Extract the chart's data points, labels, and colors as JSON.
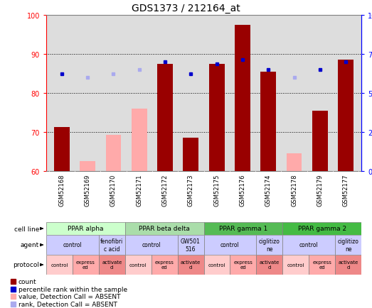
{
  "title": "GDS1373 / 212164_at",
  "samples": [
    "GSM52168",
    "GSM52169",
    "GSM52170",
    "GSM52171",
    "GSM52172",
    "GSM52173",
    "GSM52175",
    "GSM52176",
    "GSM52174",
    "GSM52178",
    "GSM52179",
    "GSM52177"
  ],
  "bar_values": [
    71.2,
    null,
    null,
    null,
    87.5,
    68.5,
    87.5,
    97.5,
    85.5,
    null,
    75.5,
    88.5
  ],
  "bar_absent_values": [
    null,
    62.5,
    69.2,
    76.0,
    null,
    null,
    null,
    null,
    null,
    64.5,
    null,
    null
  ],
  "dot_values": [
    85,
    84,
    85,
    86,
    88,
    85,
    87.5,
    88.5,
    86,
    84,
    86,
    88
  ],
  "dot_absent": [
    false,
    true,
    true,
    true,
    false,
    false,
    false,
    false,
    false,
    true,
    false,
    false
  ],
  "ylim_left": [
    60,
    100
  ],
  "ylim_right": [
    0,
    100
  ],
  "yticks_left": [
    60,
    70,
    80,
    90,
    100
  ],
  "yticks_right": [
    0,
    25,
    50,
    75,
    100
  ],
  "ytick_labels_right": [
    "0",
    "25",
    "50",
    "75",
    "100%"
  ],
  "bar_color": "#990000",
  "bar_absent_color": "#ffaaaa",
  "dot_color": "#0000cc",
  "dot_absent_color": "#aaaaee",
  "cell_line_colors": {
    "PPAR alpha": "#ccffcc",
    "PPAR beta delta": "#aaddaa",
    "PPAR gamma 1": "#55bb55",
    "PPAR gamma 2": "#44bb44"
  },
  "cell_lines": [
    {
      "label": "PPAR alpha",
      "start": 0,
      "end": 3
    },
    {
      "label": "PPAR beta delta",
      "start": 3,
      "end": 6
    },
    {
      "label": "PPAR gamma 1",
      "start": 6,
      "end": 9
    },
    {
      "label": "PPAR gamma 2",
      "start": 9,
      "end": 12
    }
  ],
  "agents": [
    {
      "label": "control",
      "start": 0,
      "end": 2
    },
    {
      "label": "fenofibri\nc acid",
      "start": 2,
      "end": 3
    },
    {
      "label": "control",
      "start": 3,
      "end": 5
    },
    {
      "label": "GW501\n516",
      "start": 5,
      "end": 6
    },
    {
      "label": "control",
      "start": 6,
      "end": 8
    },
    {
      "label": "ciglitizo\nne",
      "start": 8,
      "end": 9
    },
    {
      "label": "control",
      "start": 9,
      "end": 11
    },
    {
      "label": "ciglitizo\nne",
      "start": 11,
      "end": 12
    }
  ],
  "protocols": [
    {
      "label": "control",
      "start": 0,
      "end": 1,
      "color": "#ffcccc"
    },
    {
      "label": "express\ned",
      "start": 1,
      "end": 2,
      "color": "#ffaaaa"
    },
    {
      "label": "activate\nd",
      "start": 2,
      "end": 3,
      "color": "#ee8888"
    },
    {
      "label": "control",
      "start": 3,
      "end": 4,
      "color": "#ffcccc"
    },
    {
      "label": "express\ned",
      "start": 4,
      "end": 5,
      "color": "#ffaaaa"
    },
    {
      "label": "activate\nd",
      "start": 5,
      "end": 6,
      "color": "#ee8888"
    },
    {
      "label": "control",
      "start": 6,
      "end": 7,
      "color": "#ffcccc"
    },
    {
      "label": "express\ned",
      "start": 7,
      "end": 8,
      "color": "#ffaaaa"
    },
    {
      "label": "activate\nd",
      "start": 8,
      "end": 9,
      "color": "#ee8888"
    },
    {
      "label": "control",
      "start": 9,
      "end": 10,
      "color": "#ffcccc"
    },
    {
      "label": "express\ned",
      "start": 10,
      "end": 11,
      "color": "#ffaaaa"
    },
    {
      "label": "activate\nd",
      "start": 11,
      "end": 12,
      "color": "#ee8888"
    }
  ],
  "legend_items": [
    {
      "label": "count",
      "color": "#990000"
    },
    {
      "label": "percentile rank within the sample",
      "color": "#0000cc"
    },
    {
      "label": "value, Detection Call = ABSENT",
      "color": "#ffaaaa"
    },
    {
      "label": "rank, Detection Call = ABSENT",
      "color": "#aaaaee"
    }
  ],
  "row_labels": [
    "cell line",
    "agent",
    "protocol"
  ],
  "background_color": "#ffffff",
  "plot_bg_color": "#dddddd",
  "sample_bg_color": "#cccccc",
  "agent_color": "#ccccff"
}
